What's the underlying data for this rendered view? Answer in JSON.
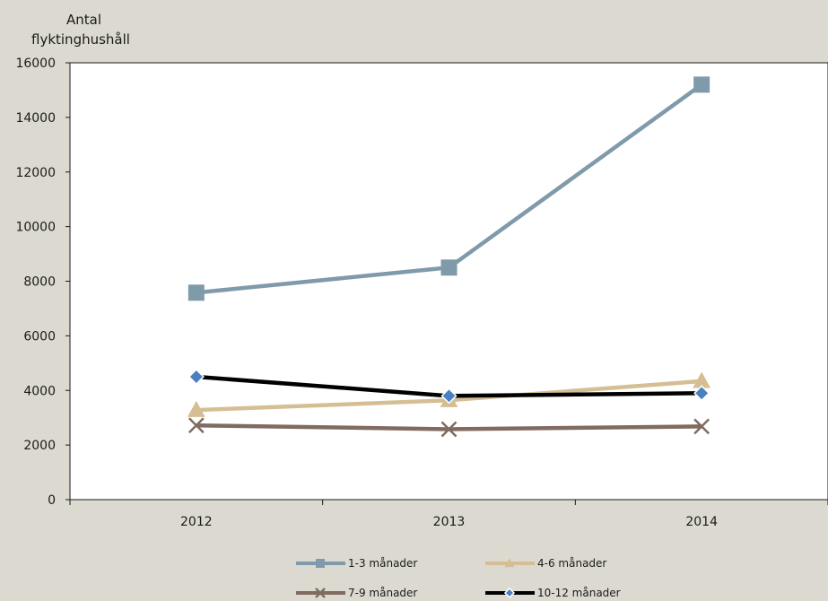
{
  "chart_data": {
    "type": "line",
    "title": "",
    "xlabel": "",
    "ylabel_lines": [
      "Antal",
      "flyktinghushåll"
    ],
    "categories": [
      "2012",
      "2013",
      "2014"
    ],
    "ylim": [
      0,
      16000
    ],
    "yticks": [
      "0",
      "2000",
      "4000",
      "6000",
      "8000",
      "10000",
      "12000",
      "14000",
      "16000"
    ],
    "grid": false,
    "legend_position": "bottom",
    "series": [
      {
        "name": "1-3 månader",
        "values": [
          7580,
          8500,
          15200
        ],
        "color": "#7f9aaa",
        "marker": "square"
      },
      {
        "name": "4-6 månader",
        "values": [
          3280,
          3640,
          4340
        ],
        "color": "#d5be93",
        "marker": "triangle"
      },
      {
        "name": "7-9 månader",
        "values": [
          2720,
          2580,
          2680
        ],
        "color": "#7f6b5f",
        "marker": "x"
      },
      {
        "name": "10-12 månader",
        "values": [
          4500,
          3800,
          3900
        ],
        "color": "#000000",
        "marker": "diamond",
        "marker_color": "#4a7fc1"
      }
    ]
  }
}
